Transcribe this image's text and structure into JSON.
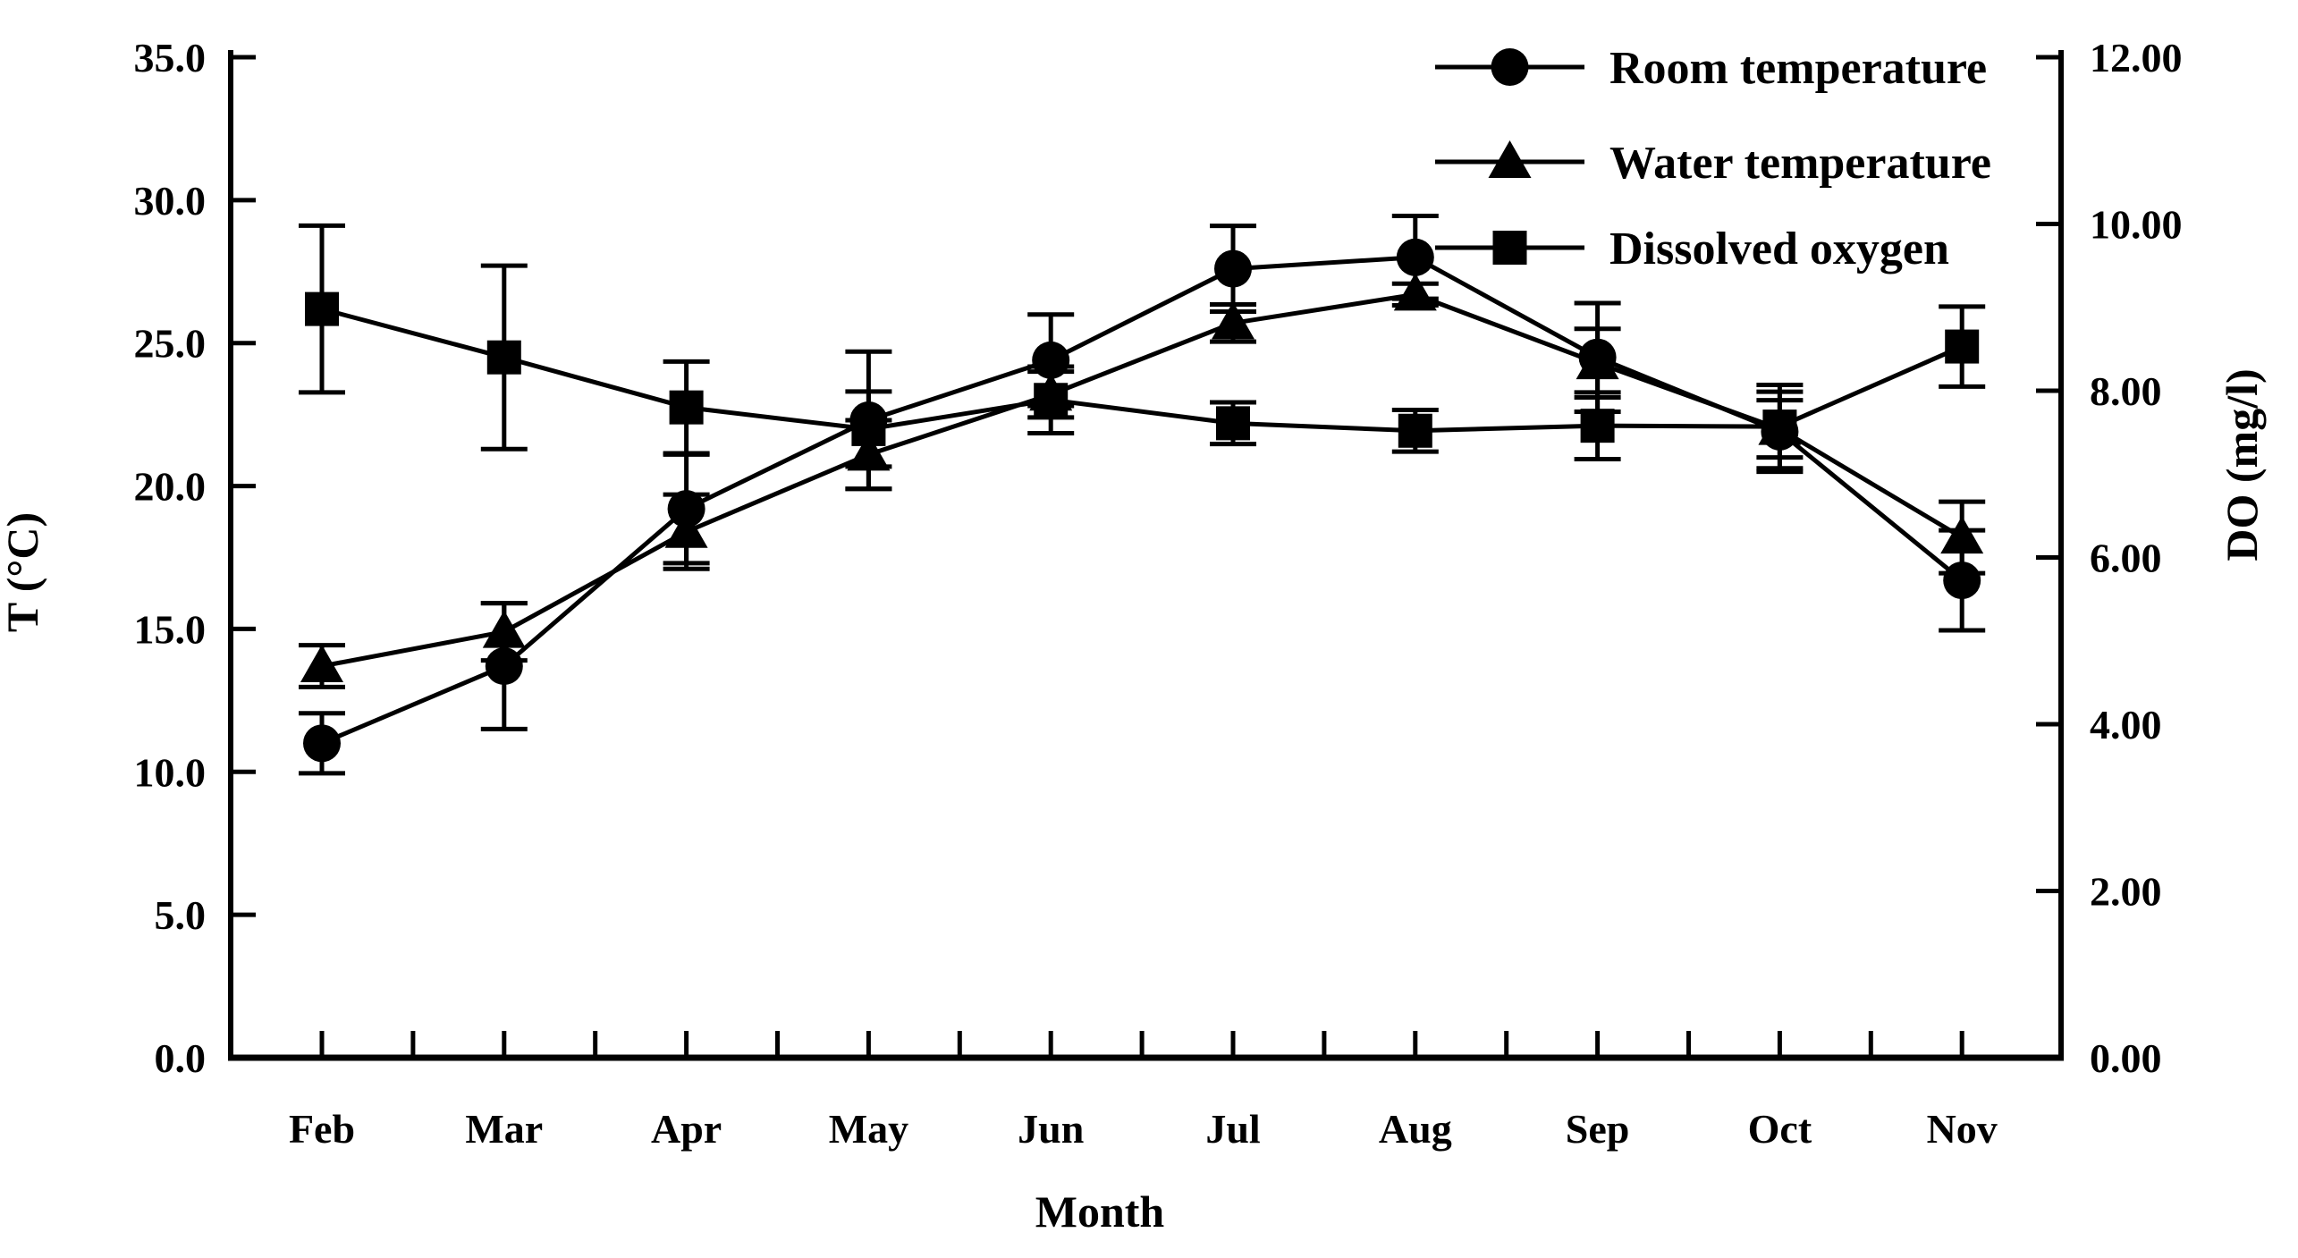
{
  "chart_data": {
    "type": "line",
    "title": "",
    "xlabel": "Month",
    "ylabel_left": "T (°C)",
    "ylabel_right": "DO (mg/l)",
    "categories": [
      "Feb",
      "Mar",
      "Apr",
      "May",
      "Jun",
      "Jul",
      "Aug",
      "Sep",
      "Oct",
      "Nov"
    ],
    "ylim_left": [
      0,
      35
    ],
    "ylim_right": [
      0,
      12
    ],
    "yticks_left": [
      "35.0",
      "30.0",
      "25.0",
      "20.0",
      "15.0",
      "10.0",
      "5.0",
      "0.0"
    ],
    "yticks_left_values": [
      35,
      30,
      25,
      20,
      15,
      10,
      5,
      0
    ],
    "yticks_right": [
      "12.00",
      "10.00",
      "8.00",
      "6.00",
      "4.00",
      "2.00",
      "0.00"
    ],
    "yticks_right_values": [
      12,
      10,
      8,
      6,
      4,
      2,
      0
    ],
    "grid": false,
    "legend_position": "top-right",
    "series": [
      {
        "name": "Room temperature",
        "axis": "left",
        "marker": "circle",
        "values": [
          11.0,
          13.7,
          19.2,
          22.3,
          24.4,
          27.6,
          28.0,
          24.5,
          21.9,
          16.7
        ],
        "errors": [
          1.05,
          2.2,
          1.9,
          2.4,
          1.6,
          1.5,
          1.45,
          1.9,
          1.4,
          1.75
        ]
      },
      {
        "name": "Water temperature",
        "axis": "left",
        "marker": "triangle",
        "values": [
          13.7,
          14.9,
          18.4,
          21.1,
          23.2,
          25.7,
          26.7,
          24.3,
          22.0,
          18.2
        ],
        "errors": [
          0.73,
          1.0,
          1.3,
          1.2,
          0.8,
          0.65,
          0.38,
          1.2,
          1.0,
          1.25
        ]
      },
      {
        "name": "Dissolved oxygen",
        "axis": "right",
        "marker": "square",
        "values": [
          8.98,
          8.4,
          7.8,
          7.54,
          7.89,
          7.61,
          7.52,
          7.58,
          7.57,
          8.53
        ],
        "errors": [
          1.0,
          1.1,
          0.55,
          0.45,
          0.4,
          0.25,
          0.25,
          0.4,
          0.5,
          0.48
        ]
      }
    ]
  },
  "colors": {
    "series": "#000000",
    "background": "#ffffff",
    "text": "#000000"
  }
}
